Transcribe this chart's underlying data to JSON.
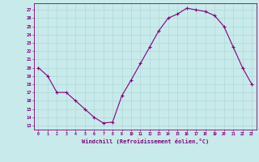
{
  "x": [
    0,
    1,
    2,
    3,
    4,
    5,
    6,
    7,
    8,
    9,
    10,
    11,
    12,
    13,
    14,
    15,
    16,
    17,
    18,
    19,
    20,
    21,
    22,
    23
  ],
  "y": [
    20,
    19,
    17,
    17,
    16,
    15,
    14,
    13.3,
    13.4,
    16.6,
    18.5,
    20.5,
    22.5,
    24.5,
    26,
    26.5,
    27.2,
    27,
    26.8,
    26.3,
    25,
    22.5,
    20,
    18
  ],
  "line_color": "#800080",
  "marker": "+",
  "marker_color": "#800080",
  "background_color": "#c8eaea",
  "grid_color": "#b0d8d8",
  "xlabel": "Windchill (Refroidissement éolien,°C)",
  "xlabel_color": "#800080",
  "xtick_labels": [
    "0",
    "1",
    "2",
    "3",
    "4",
    "5",
    "6",
    "7",
    "8",
    "9",
    "10",
    "11",
    "12",
    "13",
    "14",
    "15",
    "16",
    "17",
    "18",
    "19",
    "20",
    "21",
    "22",
    "23"
  ],
  "ytick_labels": [
    "13",
    "14",
    "15",
    "16",
    "17",
    "18",
    "19",
    "20",
    "21",
    "22",
    "23",
    "24",
    "25",
    "26",
    "27"
  ],
  "ylim": [
    12.5,
    27.8
  ],
  "xlim": [
    -0.5,
    23.5
  ],
  "tick_color": "#800080",
  "spine_color": "#800080"
}
